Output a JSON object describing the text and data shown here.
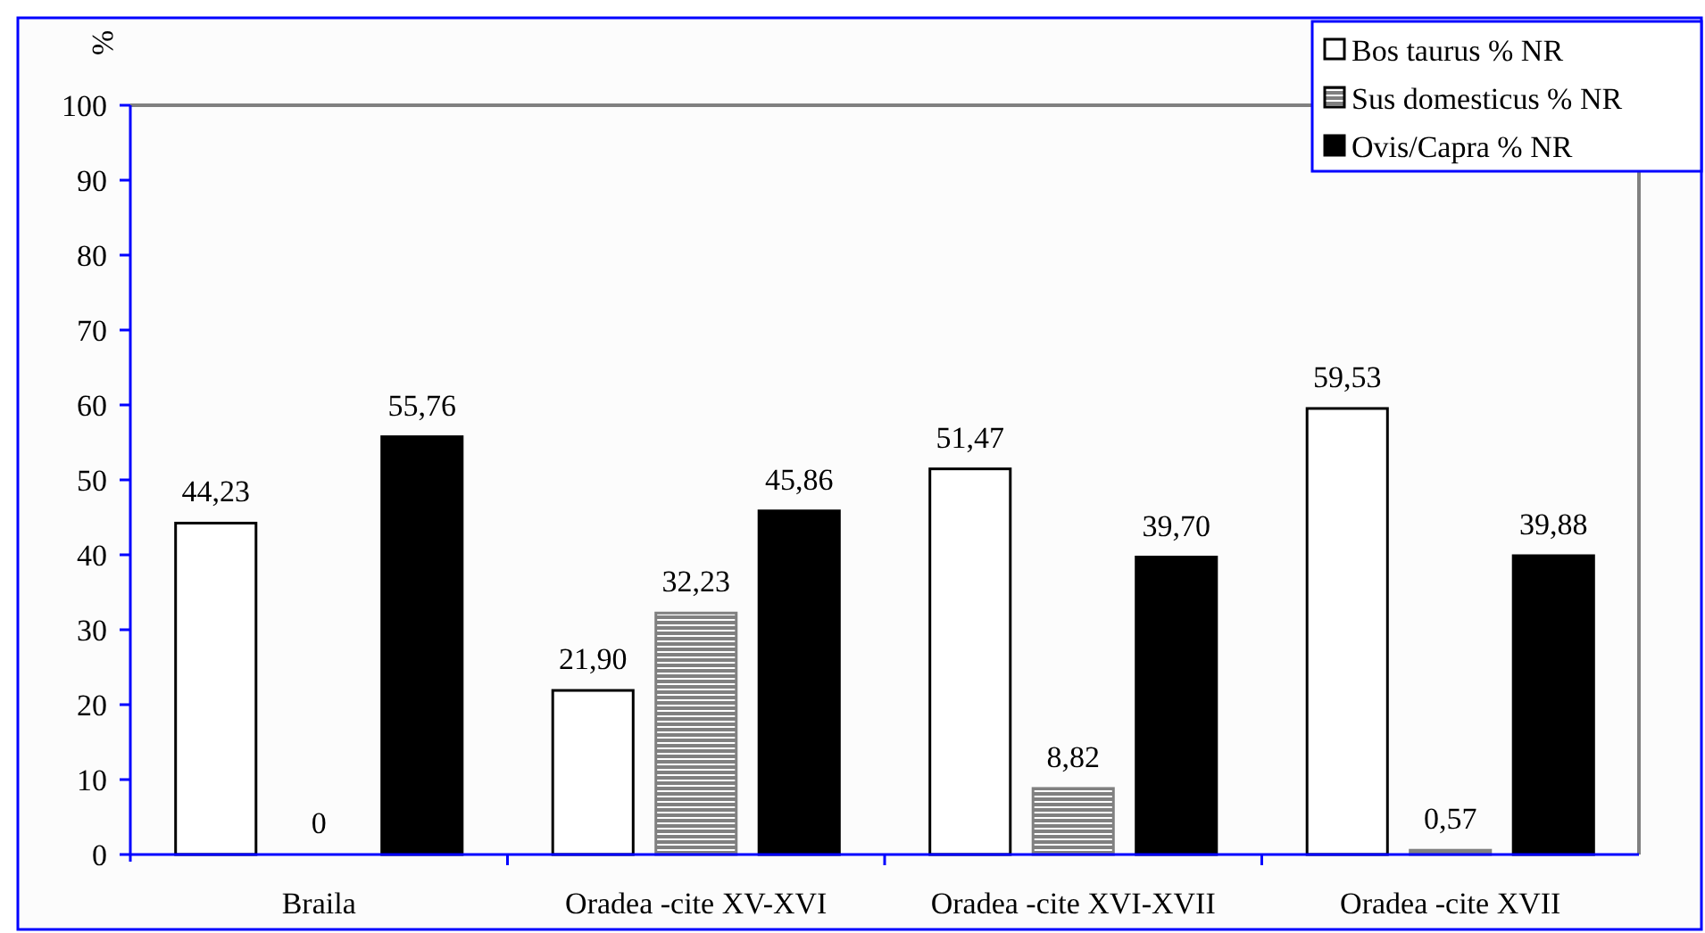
{
  "chart_data": {
    "type": "bar",
    "ylabel": "%",
    "categories": [
      "Braila",
      "Oradea -cite XV-XVI",
      "Oradea -cite XVI-XVII",
      "Oradea -cite XVII"
    ],
    "series": [
      {
        "name": "Bos taurus % NR",
        "color": "#ffffff",
        "values": [
          44.23,
          21.9,
          51.47,
          59.53
        ],
        "value_labels": [
          "44,23",
          "21,90",
          "51,47",
          "59,53"
        ]
      },
      {
        "name": "Sus domesticus % NR",
        "color": "#808080",
        "values": [
          0,
          32.23,
          8.82,
          0.57
        ],
        "value_labels": [
          "0",
          "32,23",
          "8,82",
          "0,57"
        ]
      },
      {
        "name": "Ovis/Capra % NR",
        "color": "#000000",
        "values": [
          55.76,
          45.86,
          39.7,
          39.88
        ],
        "value_labels": [
          "55,76",
          "45,86",
          "39,70",
          "39,88"
        ]
      }
    ],
    "ylim": [
      0,
      100
    ],
    "yticks": [
      0,
      10,
      20,
      30,
      40,
      50,
      60,
      70,
      80,
      90,
      100
    ],
    "grid": false,
    "legend": "top right"
  }
}
